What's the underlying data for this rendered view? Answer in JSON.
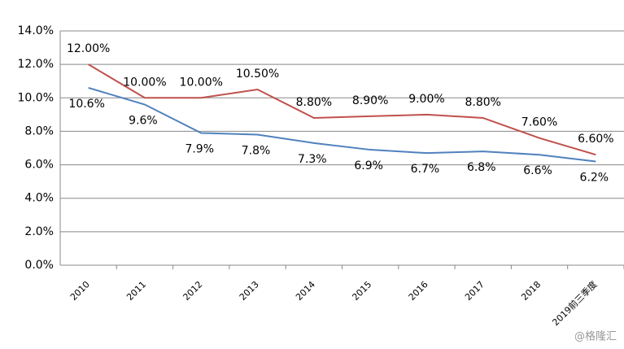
{
  "chart_data": {
    "type": "line",
    "categories": [
      "2010",
      "2011",
      "2012",
      "2013",
      "2014",
      "2015",
      "2016",
      "2017",
      "2018",
      "2019前三季度"
    ],
    "series": [
      {
        "color": "#c0504d",
        "values": [
          12.0,
          10.0,
          10.0,
          10.5,
          8.8,
          8.9,
          9.0,
          8.8,
          7.6,
          6.6
        ],
        "value_labels": [
          "12.00%",
          "10.00%",
          "10.00%",
          "10.50%",
          "8.80%",
          "8.90%",
          "9.00%",
          "8.80%",
          "7.60%",
          "6.60%"
        ]
      },
      {
        "color": "#4f81bd",
        "values": [
          10.6,
          9.6,
          7.9,
          7.8,
          7.3,
          6.9,
          6.7,
          6.8,
          6.6,
          6.2
        ],
        "value_labels": [
          "10.6%",
          "9.6%",
          "7.9%",
          "7.8%",
          "7.3%",
          "6.9%",
          "6.7%",
          "6.8%",
          "6.6%",
          "6.2%"
        ]
      }
    ],
    "ylim": [
      0,
      14
    ],
    "yticks": [
      {
        "value": 0,
        "label": "0.0%"
      },
      {
        "value": 2,
        "label": "2.0%"
      },
      {
        "value": 4,
        "label": "4.0%"
      },
      {
        "value": 6,
        "label": "6.0%"
      },
      {
        "value": 8,
        "label": "8.0%"
      },
      {
        "value": 10,
        "label": "10.0%"
      },
      {
        "value": 12,
        "label": "12.0%"
      },
      {
        "value": 14,
        "label": "14.0%"
      }
    ],
    "grid": true,
    "watermark": "@格隆汇"
  }
}
